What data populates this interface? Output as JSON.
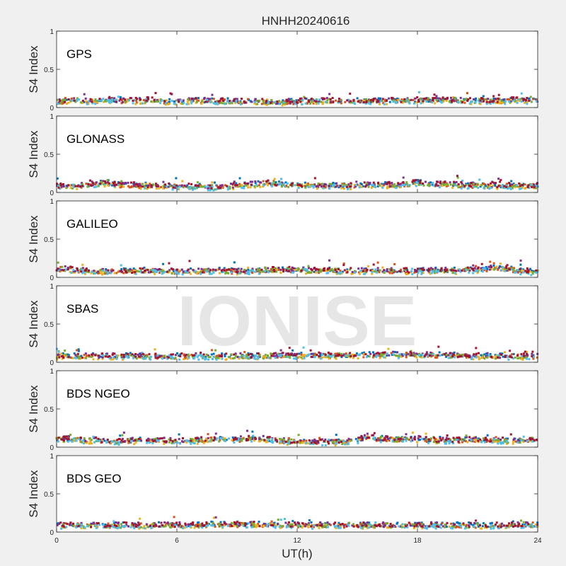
{
  "figure": {
    "title": "HNHH20240616",
    "xlabel": "UT(h)",
    "ylabel": "S4 Index",
    "watermark": "IONISE"
  },
  "chart_data": {
    "type": "scatter",
    "xlim": [
      0,
      24
    ],
    "ylim": [
      0,
      1
    ],
    "x_ticks": [
      0,
      6,
      12,
      18,
      24
    ],
    "y_ticks": [
      0,
      0.5,
      1
    ],
    "y_tick_labels": [
      "0",
      "0.5",
      "1"
    ],
    "grid": false,
    "series_colors": [
      "#0072BD",
      "#D95319",
      "#EDB120",
      "#7E2F8E",
      "#77AC30",
      "#4DBEEE",
      "#A2142F"
    ],
    "panels": [
      {
        "label": "GPS",
        "profile": [
          [
            0,
            0.09
          ],
          [
            0.5,
            0.1
          ],
          [
            1,
            0.11
          ],
          [
            1.5,
            0.1
          ],
          [
            2,
            0.1
          ],
          [
            2.5,
            0.12
          ],
          [
            3,
            0.1
          ],
          [
            4,
            0.1
          ],
          [
            4.5,
            0.11
          ],
          [
            5,
            0.1
          ],
          [
            6,
            0.09
          ],
          [
            7,
            0.1
          ],
          [
            8,
            0.1
          ],
          [
            9,
            0.09
          ],
          [
            10,
            0.09
          ],
          [
            11,
            0.08
          ],
          [
            12,
            0.09
          ],
          [
            13,
            0.1
          ],
          [
            14,
            0.1
          ],
          [
            15,
            0.1
          ],
          [
            16,
            0.1
          ],
          [
            17,
            0.1
          ],
          [
            18,
            0.11
          ],
          [
            19,
            0.11
          ],
          [
            20,
            0.1
          ],
          [
            21,
            0.1
          ],
          [
            22,
            0.1
          ],
          [
            23,
            0.11
          ],
          [
            24,
            0.1
          ]
        ]
      },
      {
        "label": "GLONASS",
        "profile": [
          [
            0,
            0.09
          ],
          [
            1,
            0.1
          ],
          [
            2,
            0.12
          ],
          [
            2.5,
            0.14
          ],
          [
            3,
            0.11
          ],
          [
            4,
            0.1
          ],
          [
            5,
            0.1
          ],
          [
            6,
            0.09
          ],
          [
            7,
            0.09
          ],
          [
            8,
            0.08
          ],
          [
            9,
            0.1
          ],
          [
            10,
            0.12
          ],
          [
            10.5,
            0.14
          ],
          [
            11,
            0.12
          ],
          [
            12,
            0.11
          ],
          [
            13,
            0.1
          ],
          [
            14,
            0.1
          ],
          [
            15,
            0.1
          ],
          [
            16,
            0.11
          ],
          [
            17,
            0.11
          ],
          [
            18,
            0.14
          ],
          [
            19,
            0.12
          ],
          [
            20,
            0.11
          ],
          [
            21,
            0.1
          ],
          [
            22,
            0.1
          ],
          [
            23,
            0.1
          ],
          [
            24,
            0.1
          ]
        ]
      },
      {
        "label": "GALILEO",
        "profile": [
          [
            0,
            0.12
          ],
          [
            0.5,
            0.13
          ],
          [
            1,
            0.1
          ],
          [
            2,
            0.09
          ],
          [
            3,
            0.09
          ],
          [
            4,
            0.09
          ],
          [
            5,
            0.1
          ],
          [
            6,
            0.09
          ],
          [
            7,
            0.09
          ],
          [
            8,
            0.1
          ],
          [
            9,
            0.09
          ],
          [
            10,
            0.1
          ],
          [
            11,
            0.11
          ],
          [
            12,
            0.11
          ],
          [
            13,
            0.1
          ],
          [
            14,
            0.1
          ],
          [
            15,
            0.1
          ],
          [
            16,
            0.1
          ],
          [
            17,
            0.09
          ],
          [
            18,
            0.1
          ],
          [
            19,
            0.1
          ],
          [
            20,
            0.1
          ],
          [
            21,
            0.11
          ],
          [
            22,
            0.14
          ],
          [
            23,
            0.1
          ],
          [
            24,
            0.08
          ]
        ]
      },
      {
        "label": "SBAS",
        "profile": [
          [
            0,
            0.09
          ],
          [
            2,
            0.09
          ],
          [
            4,
            0.09
          ],
          [
            6,
            0.09
          ],
          [
            8,
            0.09
          ],
          [
            10,
            0.09
          ],
          [
            12,
            0.1
          ],
          [
            14,
            0.1
          ],
          [
            16,
            0.11
          ],
          [
            18,
            0.11
          ],
          [
            20,
            0.1
          ],
          [
            22,
            0.09
          ],
          [
            24,
            0.09
          ]
        ]
      },
      {
        "label": "BDS NGEO",
        "profile": [
          [
            0,
            0.12
          ],
          [
            1,
            0.11
          ],
          [
            2,
            0.1
          ],
          [
            3,
            0.08
          ],
          [
            4,
            0.1
          ],
          [
            5,
            0.1
          ],
          [
            6,
            0.09
          ],
          [
            7,
            0.1
          ],
          [
            8,
            0.12
          ],
          [
            9,
            0.11
          ],
          [
            10,
            0.13
          ],
          [
            11,
            0.1
          ],
          [
            12,
            0.08
          ],
          [
            13,
            0.08
          ],
          [
            14,
            0.08
          ],
          [
            15,
            0.1
          ],
          [
            15.5,
            0.15
          ],
          [
            16,
            0.12
          ],
          [
            17,
            0.12
          ],
          [
            18,
            0.12
          ],
          [
            19,
            0.1
          ],
          [
            20,
            0.1
          ],
          [
            21,
            0.11
          ],
          [
            22,
            0.1
          ],
          [
            23,
            0.1
          ],
          [
            24,
            0.12
          ]
        ]
      },
      {
        "label": "BDS GEO",
        "profile": [
          [
            0,
            0.1
          ],
          [
            2,
            0.1
          ],
          [
            4,
            0.1
          ],
          [
            6,
            0.1
          ],
          [
            8,
            0.11
          ],
          [
            10,
            0.11
          ],
          [
            12,
            0.1
          ],
          [
            14,
            0.1
          ],
          [
            16,
            0.1
          ],
          [
            18,
            0.1
          ],
          [
            20,
            0.1
          ],
          [
            22,
            0.1
          ],
          [
            24,
            0.1
          ]
        ]
      }
    ]
  }
}
